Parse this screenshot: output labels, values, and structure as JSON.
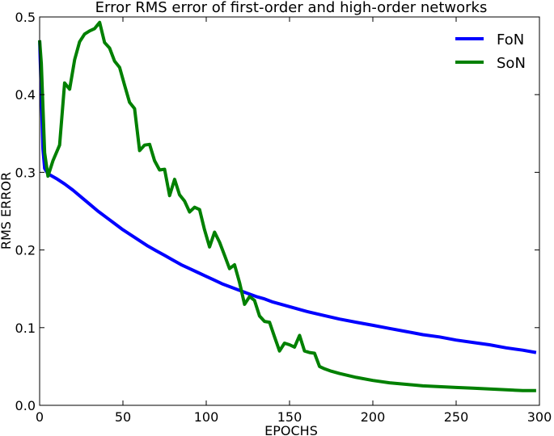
{
  "chart_data": {
    "type": "line",
    "title": "Error RMS error of first-order and high-order networks",
    "xlabel": "EPOCHS",
    "ylabel": "RMS ERROR",
    "xlim": [
      0,
      300
    ],
    "ylim": [
      0,
      0.5
    ],
    "xticks": [
      0,
      50,
      100,
      150,
      200,
      250,
      300
    ],
    "xtick_labels": [
      "0",
      "50",
      "100",
      "150",
      "200",
      "250",
      "300"
    ],
    "yticks": [
      0.0,
      0.1,
      0.2,
      0.3,
      0.4,
      0.5
    ],
    "ytick_labels": [
      "0.0",
      "0.1",
      "0.2",
      "0.3",
      "0.4",
      "0.5"
    ],
    "grid": false,
    "legend_position": "top-right",
    "series": [
      {
        "name": "FoN",
        "color": "#0000ff",
        "x": [
          0,
          1,
          2,
          3,
          5,
          10,
          15,
          20,
          25,
          30,
          35,
          40,
          45,
          50,
          55,
          60,
          65,
          70,
          75,
          80,
          85,
          90,
          95,
          100,
          105,
          110,
          115,
          120,
          125,
          130,
          135,
          140,
          145,
          150,
          155,
          160,
          170,
          180,
          190,
          200,
          210,
          220,
          230,
          240,
          250,
          260,
          270,
          280,
          290,
          298
        ],
        "y": [
          0.47,
          0.4,
          0.33,
          0.305,
          0.298,
          0.292,
          0.285,
          0.277,
          0.268,
          0.259,
          0.25,
          0.242,
          0.234,
          0.226,
          0.219,
          0.212,
          0.205,
          0.199,
          0.193,
          0.187,
          0.181,
          0.176,
          0.171,
          0.166,
          0.161,
          0.156,
          0.152,
          0.148,
          0.144,
          0.14,
          0.137,
          0.133,
          0.13,
          0.127,
          0.124,
          0.121,
          0.116,
          0.111,
          0.107,
          0.103,
          0.099,
          0.095,
          0.091,
          0.088,
          0.084,
          0.081,
          0.078,
          0.074,
          0.071,
          0.068
        ]
      },
      {
        "name": "SoN",
        "color": "#008000",
        "x": [
          0,
          1,
          3,
          5,
          8,
          12,
          15,
          18,
          21,
          24,
          27,
          30,
          33,
          36,
          39,
          42,
          45,
          48,
          51,
          54,
          57,
          60,
          63,
          66,
          69,
          72,
          75,
          78,
          81,
          84,
          87,
          90,
          93,
          96,
          99,
          102,
          105,
          108,
          111,
          114,
          117,
          120,
          123,
          126,
          129,
          132,
          135,
          138,
          141,
          144,
          147,
          150,
          153,
          156,
          159,
          162,
          165,
          168,
          171,
          175,
          180,
          190,
          200,
          210,
          220,
          230,
          240,
          250,
          260,
          270,
          280,
          290,
          298
        ],
        "y": [
          0.47,
          0.44,
          0.325,
          0.295,
          0.315,
          0.335,
          0.415,
          0.407,
          0.445,
          0.468,
          0.478,
          0.482,
          0.485,
          0.493,
          0.467,
          0.46,
          0.443,
          0.435,
          0.412,
          0.39,
          0.382,
          0.328,
          0.335,
          0.336,
          0.315,
          0.303,
          0.304,
          0.27,
          0.291,
          0.271,
          0.263,
          0.249,
          0.255,
          0.252,
          0.226,
          0.204,
          0.223,
          0.21,
          0.193,
          0.176,
          0.181,
          0.158,
          0.13,
          0.14,
          0.135,
          0.115,
          0.108,
          0.107,
          0.088,
          0.07,
          0.08,
          0.078,
          0.075,
          0.09,
          0.07,
          0.068,
          0.067,
          0.05,
          0.047,
          0.044,
          0.041,
          0.036,
          0.032,
          0.029,
          0.027,
          0.025,
          0.024,
          0.023,
          0.022,
          0.021,
          0.02,
          0.019,
          0.019
        ]
      }
    ]
  }
}
